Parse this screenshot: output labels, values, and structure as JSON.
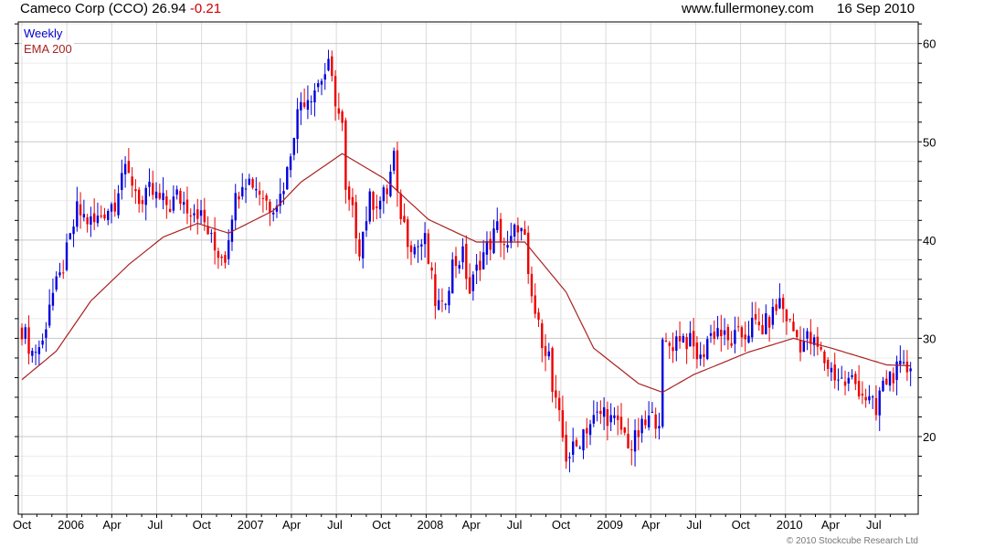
{
  "header": {
    "title": "Cameco Corp (CCO) 26.94",
    "change": "-0.21",
    "site": "www.fullermoney.com",
    "date": "16 Sep 2010"
  },
  "legend": {
    "weekly": "Weekly",
    "ema": "EMA 200"
  },
  "footer": {
    "copyright": "© 2010 Stockcube Research Ltd"
  },
  "colors": {
    "up": "#0000dd",
    "down": "#ee0000",
    "ema": "#aa2222",
    "grid_major": "#c8c8c8",
    "grid_minor": "#ececec"
  },
  "chart_data": {
    "type": "candlestick",
    "title": "Cameco Corp (CCO)",
    "frequency": "weekly",
    "ylim": [
      12.1,
      62.2
    ],
    "y_ticks": [
      20,
      30,
      40,
      50,
      60
    ],
    "x_ticks": [
      "Oct",
      "2006",
      "Apr",
      "Jul",
      "Oct",
      "2007",
      "Apr",
      "Jul",
      "Oct",
      "2008",
      "Apr",
      "Jul",
      "Oct",
      "2009",
      "Apr",
      "Jul",
      "Oct",
      "2010",
      "Apr",
      "Jul"
    ],
    "weeks_per_tick": 13.04,
    "total_weeks": 258,
    "close_keypoints_week_value": [
      [
        0,
        31
      ],
      [
        3,
        28.6
      ],
      [
        6,
        29.5
      ],
      [
        8,
        33.8
      ],
      [
        11,
        36
      ],
      [
        14,
        40
      ],
      [
        16,
        43
      ],
      [
        19,
        42
      ],
      [
        21,
        41.7
      ],
      [
        24,
        43
      ],
      [
        27,
        44
      ],
      [
        29,
        47
      ],
      [
        32,
        46
      ],
      [
        35,
        43.5
      ],
      [
        37,
        45
      ],
      [
        40,
        44
      ],
      [
        43,
        43.5
      ],
      [
        45,
        44.5
      ],
      [
        48,
        43.5
      ],
      [
        51,
        43
      ],
      [
        53,
        41.7
      ],
      [
        56,
        39
      ],
      [
        59,
        38.4
      ],
      [
        61,
        43
      ],
      [
        64,
        46.3
      ],
      [
        67,
        45.9
      ],
      [
        69,
        45
      ],
      [
        72,
        43.5
      ],
      [
        75,
        44.5
      ],
      [
        77,
        47
      ],
      [
        79,
        51.4
      ],
      [
        81,
        54.2
      ],
      [
        84,
        55
      ],
      [
        86,
        56
      ],
      [
        89,
        57.5
      ],
      [
        90,
        56
      ],
      [
        92,
        52.8
      ],
      [
        93,
        51.4
      ],
      [
        94,
        44.5
      ],
      [
        96,
        42.6
      ],
      [
        98,
        39.3
      ],
      [
        101,
        44
      ],
      [
        104,
        44
      ],
      [
        106,
        45
      ],
      [
        108,
        48.6
      ],
      [
        109,
        44
      ],
      [
        112,
        40.3
      ],
      [
        114,
        39.3
      ],
      [
        117,
        39.8
      ],
      [
        120,
        33.8
      ],
      [
        122,
        32.8
      ],
      [
        125,
        37.5
      ],
      [
        128,
        38.4
      ],
      [
        130,
        34.7
      ],
      [
        133,
        38
      ],
      [
        136,
        39.8
      ],
      [
        138,
        41.2
      ],
      [
        141,
        38.9
      ],
      [
        144,
        41.7
      ],
      [
        146,
        39.8
      ],
      [
        147,
        35.6
      ],
      [
        150,
        31
      ],
      [
        153,
        28.2
      ],
      [
        154,
        24.5
      ],
      [
        156,
        21.7
      ],
      [
        158,
        18
      ],
      [
        161,
        18.9
      ],
      [
        163,
        20.7
      ],
      [
        166,
        21.7
      ],
      [
        169,
        22.6
      ],
      [
        171,
        21.7
      ],
      [
        174,
        20.7
      ],
      [
        177,
        18.9
      ],
      [
        179,
        20.3
      ],
      [
        182,
        21.7
      ],
      [
        185,
        22
      ],
      [
        186,
        29
      ],
      [
        189,
        29.5
      ],
      [
        191,
        30.4
      ],
      [
        194,
        29.5
      ],
      [
        197,
        27.7
      ],
      [
        199,
        30
      ],
      [
        202,
        31
      ],
      [
        205,
        29.5
      ],
      [
        207,
        30
      ],
      [
        210,
        30.4
      ],
      [
        212,
        31.4
      ],
      [
        215,
        31
      ],
      [
        218,
        32.4
      ],
      [
        220,
        33.8
      ],
      [
        223,
        31.4
      ],
      [
        226,
        29.5
      ],
      [
        228,
        30
      ],
      [
        231,
        29
      ],
      [
        233,
        27.7
      ],
      [
        236,
        26.3
      ],
      [
        239,
        25.4
      ],
      [
        241,
        25.8
      ],
      [
        244,
        24.5
      ],
      [
        247,
        23.1
      ],
      [
        248,
        22.1
      ],
      [
        249,
        24.5
      ],
      [
        252,
        26.3
      ],
      [
        255,
        26.7
      ],
      [
        258,
        26.94
      ]
    ],
    "ema200_keypoints_week_value": [
      [
        0,
        25.8
      ],
      [
        10,
        28.7
      ],
      [
        20,
        33.8
      ],
      [
        31,
        37.5
      ],
      [
        41,
        40.3
      ],
      [
        51,
        41.7
      ],
      [
        60,
        40.7
      ],
      [
        73,
        43
      ],
      [
        81,
        45.9
      ],
      [
        93,
        48.8
      ],
      [
        105,
        46.3
      ],
      [
        118,
        42.1
      ],
      [
        132,
        39.8
      ],
      [
        146,
        39.8
      ],
      [
        158,
        34.7
      ],
      [
        166,
        29
      ],
      [
        179,
        25.4
      ],
      [
        186,
        24.5
      ],
      [
        195,
        26.3
      ],
      [
        211,
        28.6
      ],
      [
        224,
        30
      ],
      [
        235,
        29
      ],
      [
        251,
        27.3
      ],
      [
        258,
        27.2
      ]
    ]
  }
}
